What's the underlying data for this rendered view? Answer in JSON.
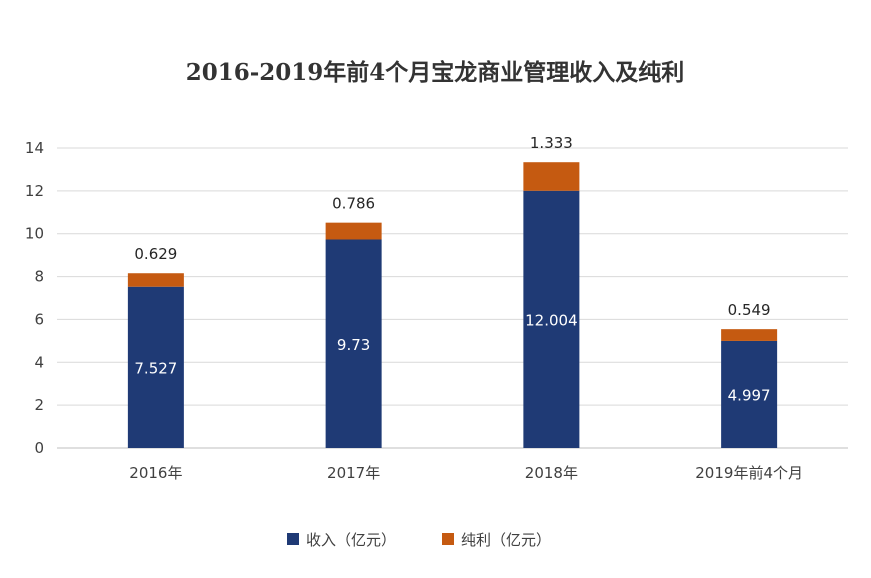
{
  "chart_data": {
    "type": "bar",
    "stacked": true,
    "title": "2016-2019年前4个月宝龙商业管理收入及纯利",
    "categories": [
      "2016年",
      "2017年",
      "2018年",
      "2019年前4个月"
    ],
    "series": [
      {
        "name": "收入（亿元）",
        "values": [
          7.527,
          9.73,
          12.004,
          4.997
        ],
        "labels": [
          "7.527",
          "9.73",
          "12.004",
          "4.997"
        ],
        "color": "#1f3a75"
      },
      {
        "name": "纯利（亿元）",
        "values": [
          0.629,
          0.786,
          1.333,
          0.549
        ],
        "labels": [
          "0.629",
          "0.786",
          "1.333",
          "0.549"
        ],
        "color": "#c55a11"
      }
    ],
    "ylim": [
      0,
      14
    ],
    "yticks": [
      "0",
      "2",
      "4",
      "6",
      "8",
      "10",
      "12",
      "14"
    ],
    "grid": true,
    "legend": "bottom"
  }
}
